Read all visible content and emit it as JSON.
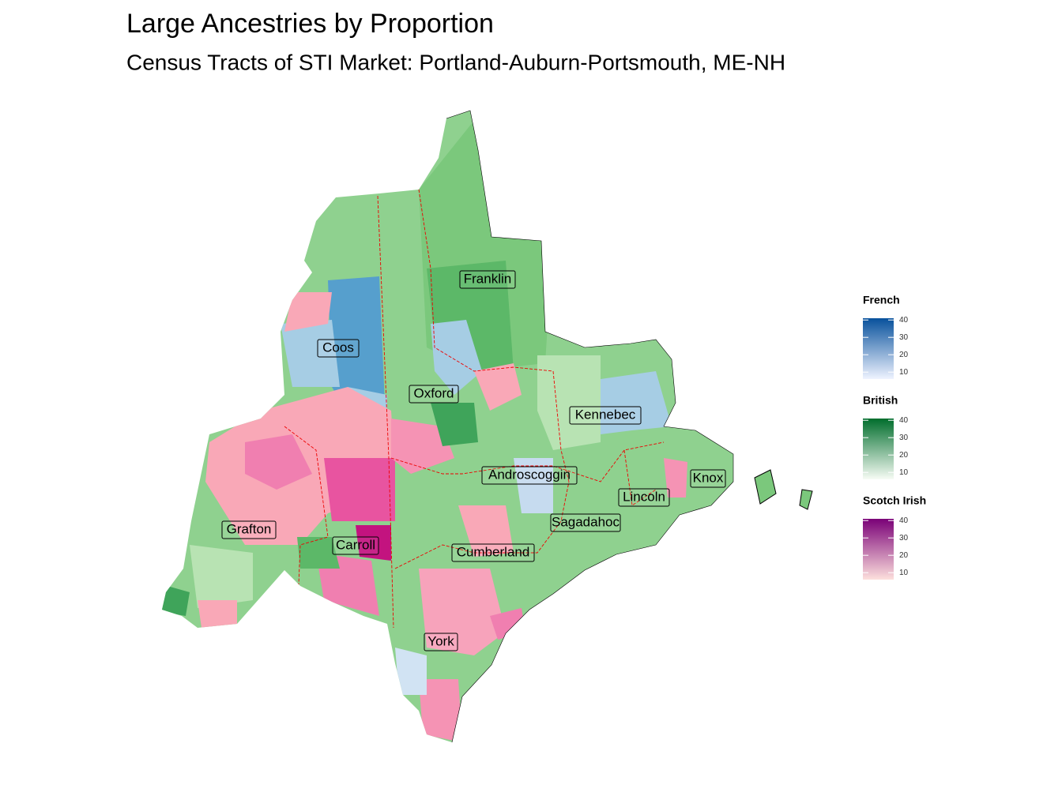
{
  "header": {
    "title": "Large Ancestries by Proportion",
    "subtitle": "Census Tracts of STI Market: Portland-Auburn-Portsmouth, ME-NH"
  },
  "map": {
    "county_labels": [
      "Franklin",
      "Coos",
      "Oxford",
      "Kennebec",
      "Androscoggin",
      "Knox",
      "Lincoln",
      "Grafton",
      "Sagadahoc",
      "Carroll",
      "Cumberland",
      "York"
    ]
  },
  "legends": [
    {
      "title": "French",
      "lim": [
        6,
        41
      ],
      "ticks": [
        10,
        20,
        30,
        40
      ],
      "colors": [
        "#eff3ff",
        "#08519c"
      ]
    },
    {
      "title": "British",
      "lim": [
        6,
        41
      ],
      "ticks": [
        10,
        20,
        30,
        40
      ],
      "colors": [
        "#f7fcf5",
        "#006d2c"
      ]
    },
    {
      "title": "Scotch Irish",
      "lim": [
        6,
        41
      ],
      "ticks": [
        10,
        20,
        30,
        40
      ],
      "colors": [
        "#fde0dd",
        "#7a0177"
      ]
    }
  ]
}
